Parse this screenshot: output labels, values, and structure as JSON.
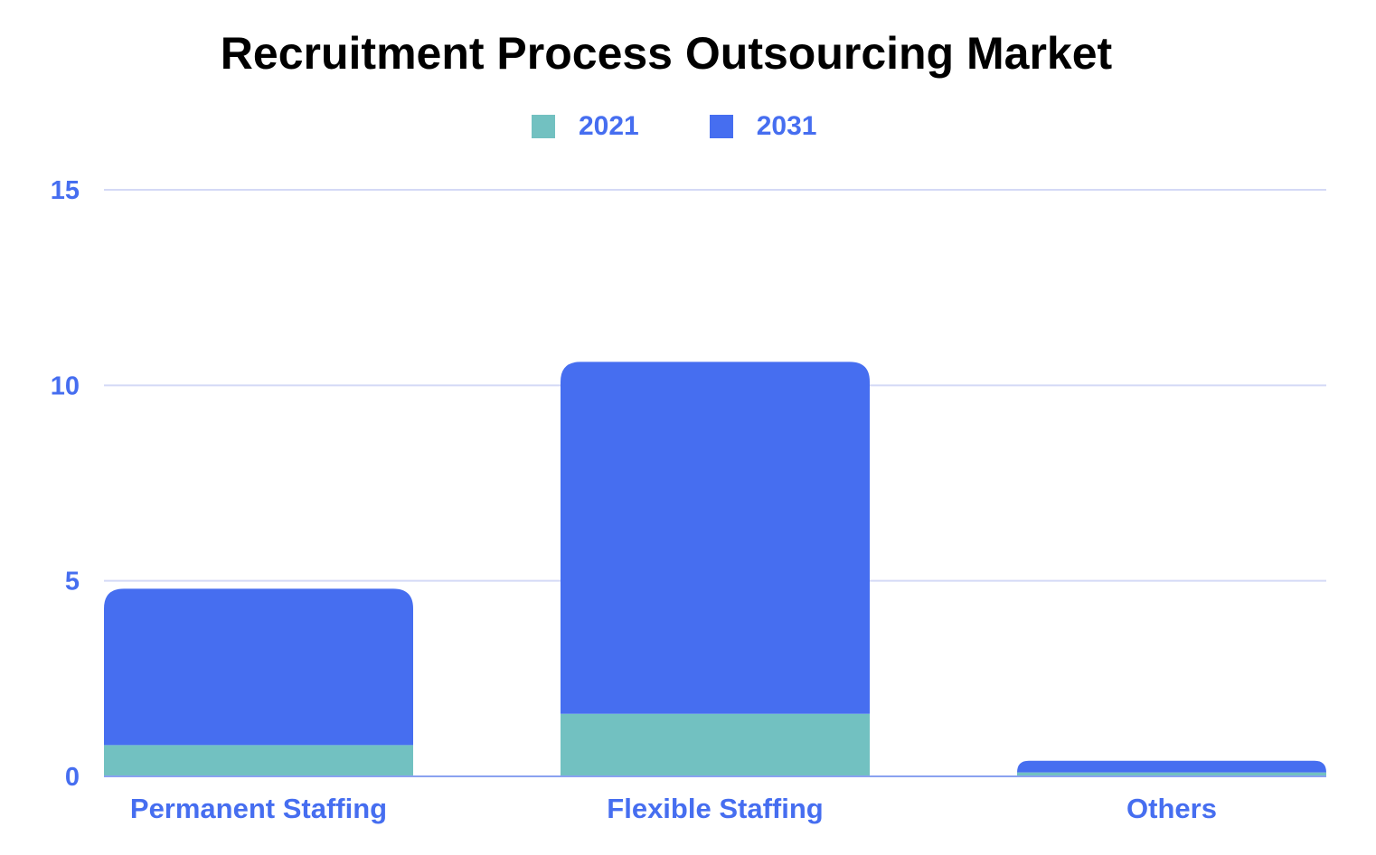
{
  "colors": {
    "series_2021": "#72c1c1",
    "series_2031": "#466ef0",
    "label": "#466ef0",
    "grid": "#d4d9f6",
    "axis": "#8aa2f0",
    "title": "#000000"
  },
  "chart_data": {
    "type": "bar",
    "stacked": true,
    "title": "Recruitment Process Outsourcing Market",
    "xlabel": "",
    "ylabel": "",
    "categories": [
      "Permanent Staffing",
      "Flexible Staffing",
      "Others"
    ],
    "series": [
      {
        "name": "2021",
        "values": [
          0.8,
          1.6,
          0.1
        ]
      },
      {
        "name": "2031",
        "values": [
          4.0,
          9.0,
          0.3
        ]
      }
    ],
    "ylim": [
      0,
      15
    ],
    "yticks": [
      0,
      5,
      10,
      15
    ],
    "ytick_labels": [
      "0",
      "5",
      "10",
      "15"
    ],
    "grid": true,
    "legend_position": "top-center"
  }
}
